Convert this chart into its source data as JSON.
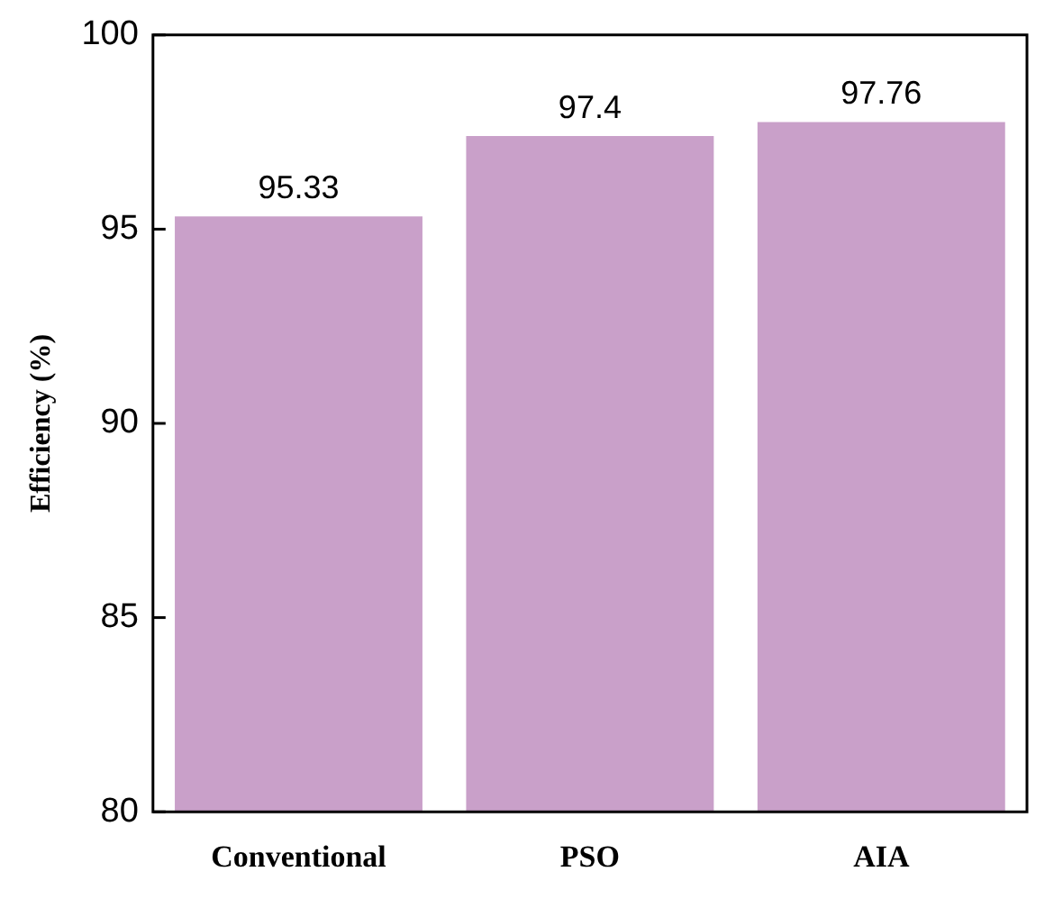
{
  "chart_data": {
    "type": "bar",
    "ylabel": "Efficiency (%)",
    "categories": [
      "Conventional",
      "PSO",
      "AIA"
    ],
    "values": [
      95.33,
      97.4,
      97.76
    ],
    "color": "#c9a0c9",
    "ylim": [
      80,
      100
    ],
    "yticks": [
      80,
      85,
      90,
      95,
      100
    ],
    "grid": false,
    "legend": false,
    "data_labels": true
  }
}
